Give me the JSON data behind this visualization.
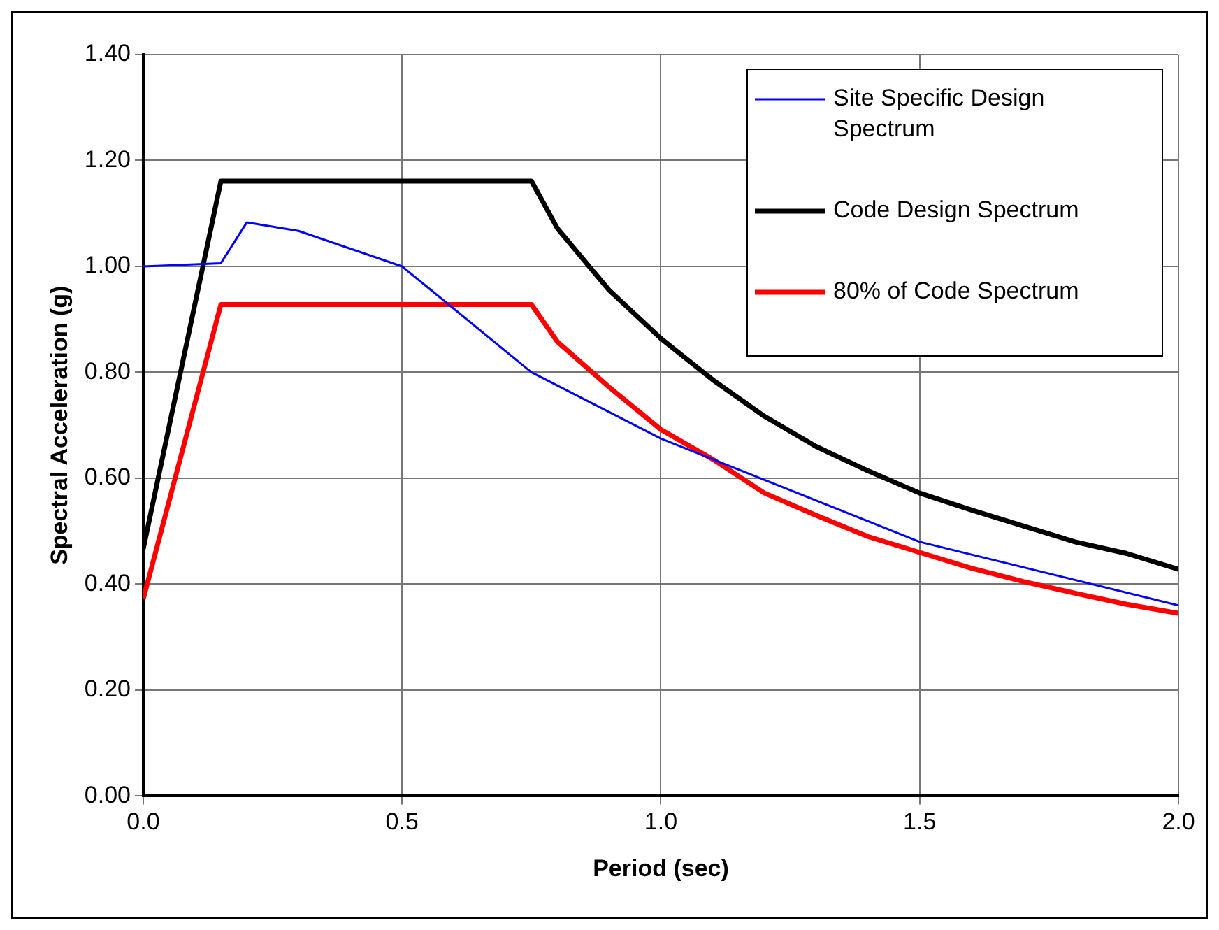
{
  "chart_data": {
    "type": "line",
    "xlabel": "Period (sec)",
    "ylabel": "Spectral Acceleration (g)",
    "xlim": [
      0,
      2
    ],
    "xticks": [
      {
        "value": 0,
        "label": "0.0"
      },
      {
        "value": 0.5,
        "label": "0.5"
      },
      {
        "value": 1,
        "label": "1.0"
      },
      {
        "value": 1.5,
        "label": "1.5"
      },
      {
        "value": 2,
        "label": "2.0"
      }
    ],
    "ylim": [
      0,
      1.4
    ],
    "yticks": [
      {
        "value": 0,
        "label": "0.00"
      },
      {
        "value": 0.2,
        "label": "0.20"
      },
      {
        "value": 0.4,
        "label": "0.40"
      },
      {
        "value": 0.6,
        "label": "0.60"
      },
      {
        "value": 0.8,
        "label": "0.80"
      },
      {
        "value": 1,
        "label": "1.00"
      },
      {
        "value": 1.2,
        "label": "1.20"
      },
      {
        "value": 1.4,
        "label": "1.40"
      }
    ],
    "grid": true,
    "legend": "top right",
    "marker": "none",
    "line_style": "solid",
    "series": [
      {
        "name": "Site Specific Design Spectrum",
        "color": "#0000ff",
        "x": [
          0,
          0.15,
          0.2,
          0.3,
          0.5,
          0.75,
          1.0,
          1.5,
          2.0
        ],
        "values": [
          1.0,
          1.006,
          1.083,
          1.067,
          1.0,
          0.8,
          0.675,
          0.48,
          0.36
        ]
      },
      {
        "name": "Code Design Spectrum",
        "color": "#000000",
        "x": [
          0,
          0.15,
          0.75,
          0.8,
          0.9,
          1.0,
          1.1,
          1.2,
          1.3,
          1.4,
          1.5,
          1.6,
          1.7,
          1.8,
          1.9,
          2.0
        ],
        "values": [
          0.467,
          1.161,
          1.161,
          1.072,
          0.955,
          0.864,
          0.786,
          0.717,
          0.66,
          0.614,
          0.572,
          0.54,
          0.51,
          0.48,
          0.458,
          0.428
        ]
      },
      {
        "name": "80% of Code Spectrum",
        "color": "#ff0000",
        "x": [
          0,
          0.15,
          0.75,
          0.8,
          0.9,
          1.0,
          1.1,
          1.2,
          1.3,
          1.4,
          1.5,
          1.6,
          1.7,
          1.8,
          1.9,
          2.0
        ],
        "values": [
          0.372,
          0.928,
          0.928,
          0.858,
          0.772,
          0.692,
          0.636,
          0.572,
          0.53,
          0.49,
          0.46,
          0.43,
          0.405,
          0.383,
          0.362,
          0.345
        ]
      }
    ]
  }
}
